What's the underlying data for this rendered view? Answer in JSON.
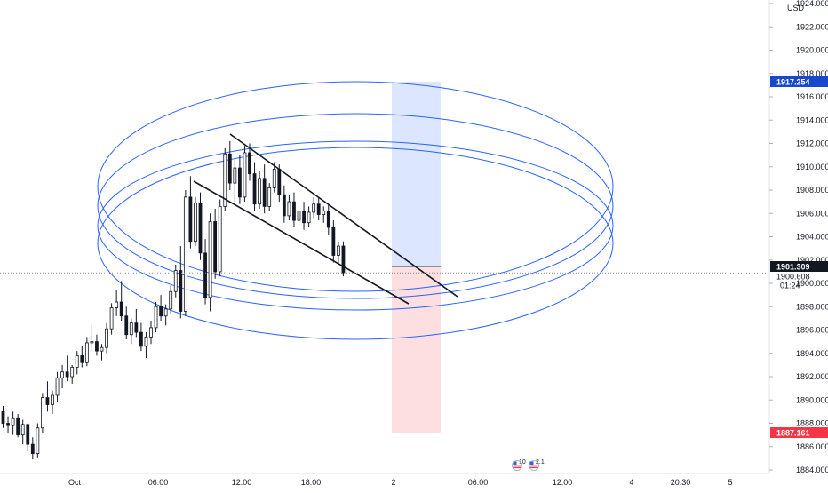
{
  "chart_data": {
    "type": "candlestick",
    "currency_label": "USD",
    "y_ticks": [
      1924.0,
      1922.0,
      1920.0,
      1918.0,
      1916.0,
      1914.0,
      1912.0,
      1910.0,
      1908.0,
      1906.0,
      1904.0,
      1902.0,
      1900.0,
      1898.0,
      1896.0,
      1894.0,
      1892.0,
      1890.0,
      1888.0,
      1886.0,
      1884.0
    ],
    "y_tick_labels": [
      "1924.000",
      "1922.000",
      "1920.000",
      "1918.000",
      "1916.000",
      "1914.000",
      "1912.000",
      "1910.000",
      "1908.000",
      "1906.000",
      "1904.000",
      "1902.000",
      "1900.000",
      "1898.000",
      "1896.000",
      "1894.000",
      "1892.000",
      "1890.000",
      "1888.000",
      "1886.000",
      "1884.000"
    ],
    "x_ticks": [
      "Oct",
      "06:00",
      "12:00",
      "18:00",
      "2",
      "06:00",
      "12:00",
      "4",
      "20:30",
      "5"
    ],
    "price_badges": {
      "target": {
        "value": "1917.254",
        "color": "#1848cc"
      },
      "last": {
        "value": "1901.309",
        "color": "#131722"
      },
      "current": {
        "value": "1900.608"
      },
      "countdown": {
        "value": "01:24"
      },
      "stop": {
        "value": "1887.161",
        "color": "#f23645"
      }
    },
    "events": [
      {
        "label": "10",
        "icon": "flag-us-icon"
      },
      {
        "label": "2.1",
        "icon": "flag-us-icon"
      }
    ],
    "candles": [
      [
        1889.0,
        1889.5,
        1887.6,
        1888.0
      ],
      [
        1888.0,
        1888.6,
        1887.2,
        1887.8
      ],
      [
        1887.8,
        1889.0,
        1887.0,
        1888.4
      ],
      [
        1888.4,
        1888.8,
        1886.8,
        1887.0
      ],
      [
        1887.0,
        1888.3,
        1886.2,
        1887.9
      ],
      [
        1887.9,
        1888.0,
        1885.6,
        1886.2
      ],
      [
        1886.2,
        1886.8,
        1884.9,
        1885.4
      ],
      [
        1885.4,
        1888.0,
        1885.0,
        1887.6
      ],
      [
        1887.6,
        1890.6,
        1887.2,
        1890.2
      ],
      [
        1890.2,
        1891.6,
        1889.0,
        1889.6
      ],
      [
        1889.6,
        1890.8,
        1888.8,
        1890.4
      ],
      [
        1890.4,
        1892.4,
        1889.8,
        1891.9
      ],
      [
        1891.9,
        1893.0,
        1891.0,
        1892.4
      ],
      [
        1892.4,
        1893.8,
        1891.6,
        1892.0
      ],
      [
        1892.0,
        1893.0,
        1891.4,
        1892.8
      ],
      [
        1892.8,
        1894.2,
        1892.2,
        1893.8
      ],
      [
        1893.8,
        1894.6,
        1892.8,
        1893.2
      ],
      [
        1893.2,
        1895.4,
        1892.9,
        1894.9
      ],
      [
        1894.9,
        1896.4,
        1894.2,
        1895.0
      ],
      [
        1895.0,
        1895.6,
        1893.8,
        1894.2
      ],
      [
        1894.2,
        1894.8,
        1893.4,
        1894.5
      ],
      [
        1894.5,
        1896.6,
        1894.0,
        1896.1
      ],
      [
        1896.1,
        1898.3,
        1895.6,
        1897.9
      ],
      [
        1897.9,
        1899.4,
        1897.2,
        1898.4
      ],
      [
        1898.4,
        1900.2,
        1896.8,
        1897.2
      ],
      [
        1897.2,
        1898.0,
        1895.2,
        1895.6
      ],
      [
        1895.6,
        1897.0,
        1894.8,
        1896.6
      ],
      [
        1896.6,
        1897.8,
        1895.4,
        1895.8
      ],
      [
        1895.8,
        1896.6,
        1894.2,
        1894.6
      ],
      [
        1894.6,
        1895.8,
        1893.6,
        1895.4
      ],
      [
        1895.4,
        1896.8,
        1894.8,
        1896.2
      ],
      [
        1896.2,
        1898.4,
        1895.8,
        1898.0
      ],
      [
        1898.0,
        1899.0,
        1896.8,
        1897.2
      ],
      [
        1897.2,
        1898.2,
        1896.4,
        1897.8
      ],
      [
        1897.8,
        1899.8,
        1897.4,
        1899.3
      ],
      [
        1899.3,
        1901.6,
        1898.8,
        1901.1
      ],
      [
        1901.1,
        1903.2,
        1897.0,
        1897.6
      ],
      [
        1897.6,
        1908.0,
        1897.2,
        1907.4
      ],
      [
        1907.4,
        1909.2,
        1903.0,
        1903.6
      ],
      [
        1903.6,
        1907.4,
        1903.2,
        1906.9
      ],
      [
        1906.9,
        1907.8,
        1902.0,
        1902.6
      ],
      [
        1902.6,
        1903.8,
        1898.2,
        1898.8
      ],
      [
        1898.8,
        1906.0,
        1897.6,
        1905.3
      ],
      [
        1905.3,
        1906.4,
        1900.4,
        1901.0
      ],
      [
        1901.0,
        1907.2,
        1900.6,
        1906.6
      ],
      [
        1906.6,
        1911.6,
        1906.2,
        1911.1
      ],
      [
        1911.1,
        1912.2,
        1908.0,
        1908.6
      ],
      [
        1908.6,
        1910.6,
        1907.0,
        1909.9
      ],
      [
        1909.9,
        1911.0,
        1906.8,
        1907.4
      ],
      [
        1907.4,
        1911.8,
        1907.0,
        1911.2
      ],
      [
        1911.2,
        1912.0,
        1908.8,
        1909.4
      ],
      [
        1909.4,
        1910.4,
        1906.2,
        1906.8
      ],
      [
        1906.8,
        1909.6,
        1906.4,
        1909.0
      ],
      [
        1909.0,
        1910.2,
        1906.0,
        1906.6
      ],
      [
        1906.6,
        1908.6,
        1906.2,
        1908.2
      ],
      [
        1908.2,
        1910.4,
        1907.8,
        1909.8
      ],
      [
        1909.8,
        1910.2,
        1907.0,
        1907.6
      ],
      [
        1907.6,
        1908.4,
        1905.2,
        1905.8
      ],
      [
        1905.8,
        1907.6,
        1905.4,
        1907.0
      ],
      [
        1907.0,
        1907.8,
        1904.8,
        1905.4
      ],
      [
        1905.4,
        1906.8,
        1904.2,
        1906.2
      ],
      [
        1906.2,
        1907.0,
        1904.6,
        1905.2
      ],
      [
        1905.2,
        1906.6,
        1904.8,
        1906.1
      ],
      [
        1906.1,
        1907.4,
        1905.6,
        1906.8
      ],
      [
        1906.8,
        1907.4,
        1905.4,
        1905.9
      ],
      [
        1905.9,
        1906.6,
        1905.2,
        1906.2
      ],
      [
        1906.2,
        1906.8,
        1904.2,
        1904.8
      ],
      [
        1904.8,
        1905.4,
        1901.8,
        1902.4
      ],
      [
        1902.4,
        1903.6,
        1901.6,
        1903.2
      ],
      [
        1903.2,
        1903.6,
        1900.6,
        1900.9
      ]
    ]
  }
}
